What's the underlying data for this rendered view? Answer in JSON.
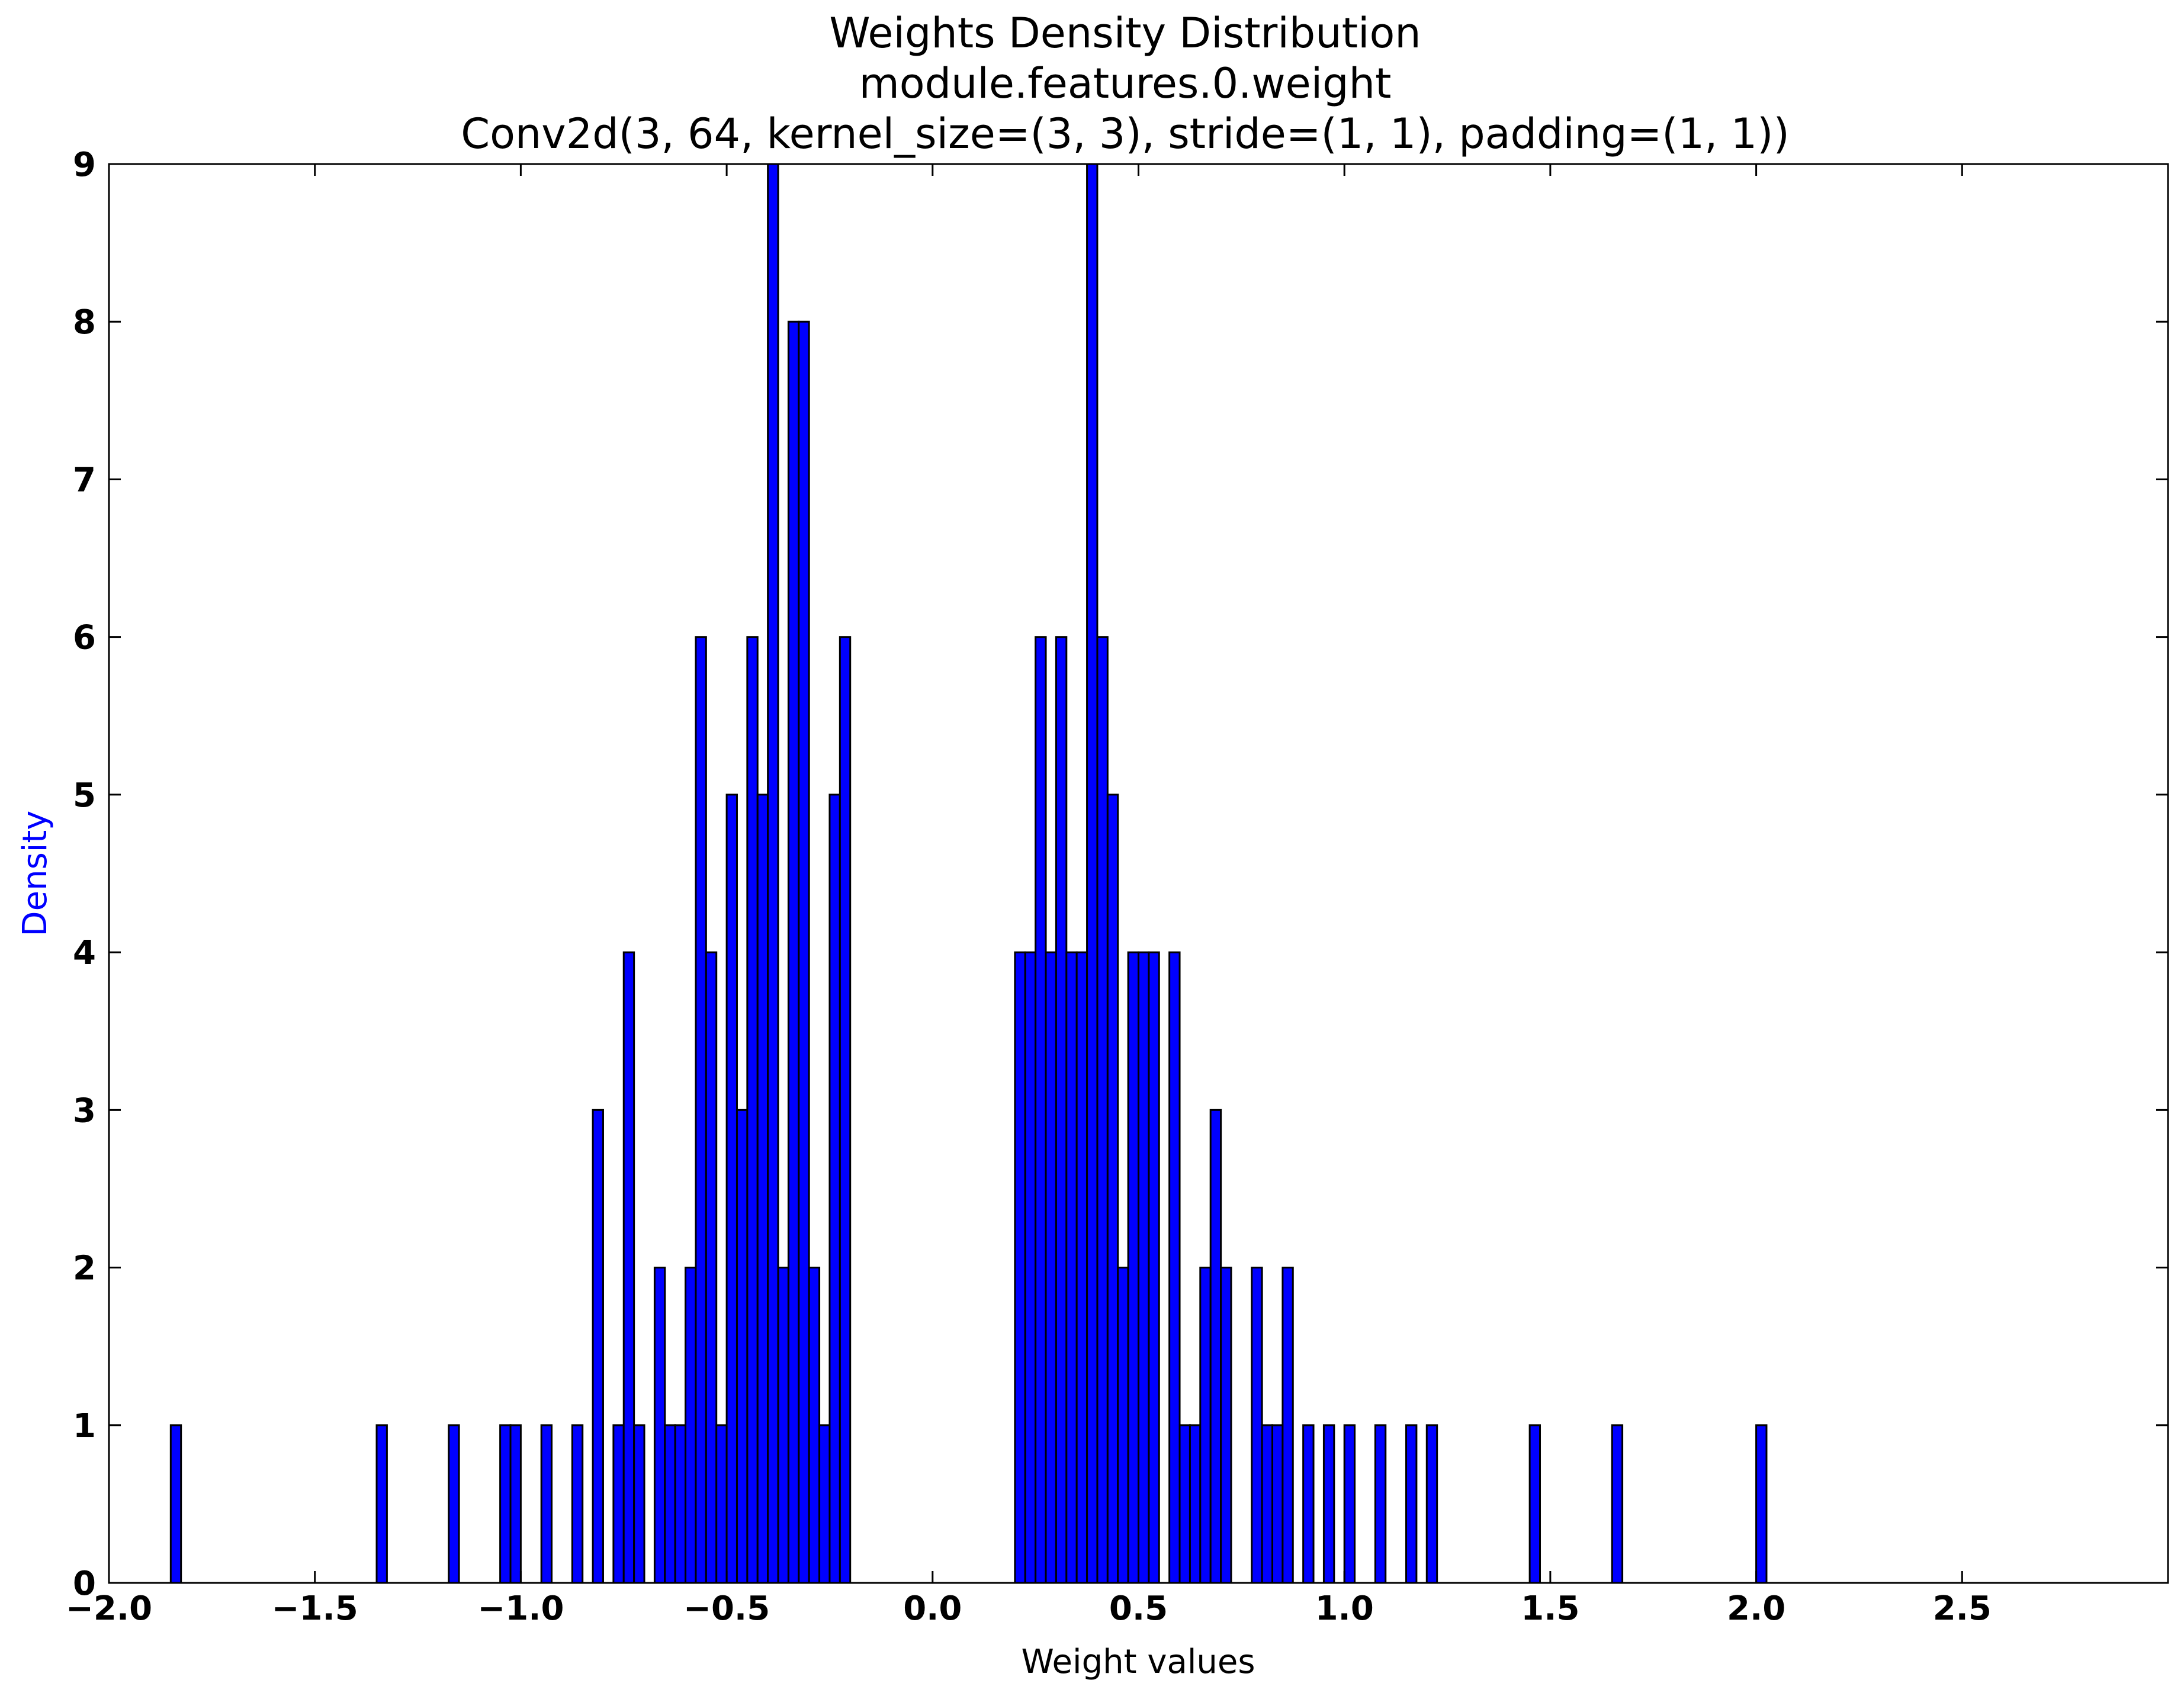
{
  "chart_data": {
    "type": "bar",
    "title": [
      "Weights Density Distribution",
      "module.features.0.weight",
      "Conv2d(3, 64, kernel_size=(3, 3), stride=(1, 1), padding=(1, 1))"
    ],
    "xlabel": "Weight values",
    "ylabel": "Density",
    "xlim": [
      -2.0,
      3.0
    ],
    "ylim": [
      0,
      9
    ],
    "xticks": [
      -2.0,
      -1.5,
      -1.0,
      -0.5,
      0.0,
      0.5,
      1.0,
      1.5,
      2.0,
      2.5
    ],
    "xtick_labels": [
      "−2.0",
      "−1.5",
      "−1.0",
      "−0.5",
      "0.0",
      "0.5",
      "1.0",
      "1.5",
      "2.0",
      "2.5"
    ],
    "yticks": [
      0,
      1,
      2,
      3,
      4,
      5,
      6,
      7,
      8,
      9
    ],
    "ytick_labels": [
      "0",
      "1",
      "2",
      "3",
      "4",
      "5",
      "6",
      "7",
      "8",
      "9"
    ],
    "bin_width": 0.025,
    "colors": {
      "bar": "#0000ff",
      "edge": "#000000",
      "ylabel": "#0000ff"
    },
    "grid": false,
    "legend": "none",
    "bins": [
      {
        "x": -1.85,
        "value": 1
      },
      {
        "x": -1.35,
        "value": 1
      },
      {
        "x": -1.175,
        "value": 1
      },
      {
        "x": -1.05,
        "value": 1
      },
      {
        "x": -1.025,
        "value": 1
      },
      {
        "x": -0.95,
        "value": 1
      },
      {
        "x": -0.875,
        "value": 1
      },
      {
        "x": -0.825,
        "value": 3
      },
      {
        "x": -0.775,
        "value": 1
      },
      {
        "x": -0.75,
        "value": 4
      },
      {
        "x": -0.725,
        "value": 1
      },
      {
        "x": -0.675,
        "value": 2
      },
      {
        "x": -0.65,
        "value": 1
      },
      {
        "x": -0.625,
        "value": 1
      },
      {
        "x": -0.6,
        "value": 2
      },
      {
        "x": -0.575,
        "value": 6
      },
      {
        "x": -0.55,
        "value": 4
      },
      {
        "x": -0.525,
        "value": 1
      },
      {
        "x": -0.5,
        "value": 5
      },
      {
        "x": -0.475,
        "value": 3
      },
      {
        "x": -0.45,
        "value": 6
      },
      {
        "x": -0.425,
        "value": 5
      },
      {
        "x": -0.4,
        "value": 9
      },
      {
        "x": -0.375,
        "value": 2
      },
      {
        "x": -0.35,
        "value": 8
      },
      {
        "x": -0.325,
        "value": 8
      },
      {
        "x": -0.3,
        "value": 2
      },
      {
        "x": -0.275,
        "value": 1
      },
      {
        "x": -0.25,
        "value": 5
      },
      {
        "x": -0.225,
        "value": 6
      },
      {
        "x": 0.2,
        "value": 4
      },
      {
        "x": 0.225,
        "value": 4
      },
      {
        "x": 0.25,
        "value": 6
      },
      {
        "x": 0.275,
        "value": 4
      },
      {
        "x": 0.3,
        "value": 6
      },
      {
        "x": 0.325,
        "value": 4
      },
      {
        "x": 0.35,
        "value": 4
      },
      {
        "x": 0.375,
        "value": 9
      },
      {
        "x": 0.4,
        "value": 6
      },
      {
        "x": 0.425,
        "value": 5
      },
      {
        "x": 0.45,
        "value": 2
      },
      {
        "x": 0.475,
        "value": 4
      },
      {
        "x": 0.5,
        "value": 4
      },
      {
        "x": 0.525,
        "value": 4
      },
      {
        "x": 0.575,
        "value": 4
      },
      {
        "x": 0.6,
        "value": 1
      },
      {
        "x": 0.625,
        "value": 1
      },
      {
        "x": 0.65,
        "value": 2
      },
      {
        "x": 0.675,
        "value": 3
      },
      {
        "x": 0.7,
        "value": 2
      },
      {
        "x": 0.775,
        "value": 2
      },
      {
        "x": 0.8,
        "value": 1
      },
      {
        "x": 0.825,
        "value": 1
      },
      {
        "x": 0.85,
        "value": 2
      },
      {
        "x": 0.9,
        "value": 1
      },
      {
        "x": 0.95,
        "value": 1
      },
      {
        "x": 1.0,
        "value": 1
      },
      {
        "x": 1.075,
        "value": 1
      },
      {
        "x": 1.15,
        "value": 1
      },
      {
        "x": 1.2,
        "value": 1
      },
      {
        "x": 1.45,
        "value": 1
      },
      {
        "x": 1.65,
        "value": 1
      },
      {
        "x": 2.0,
        "value": 1
      }
    ]
  }
}
